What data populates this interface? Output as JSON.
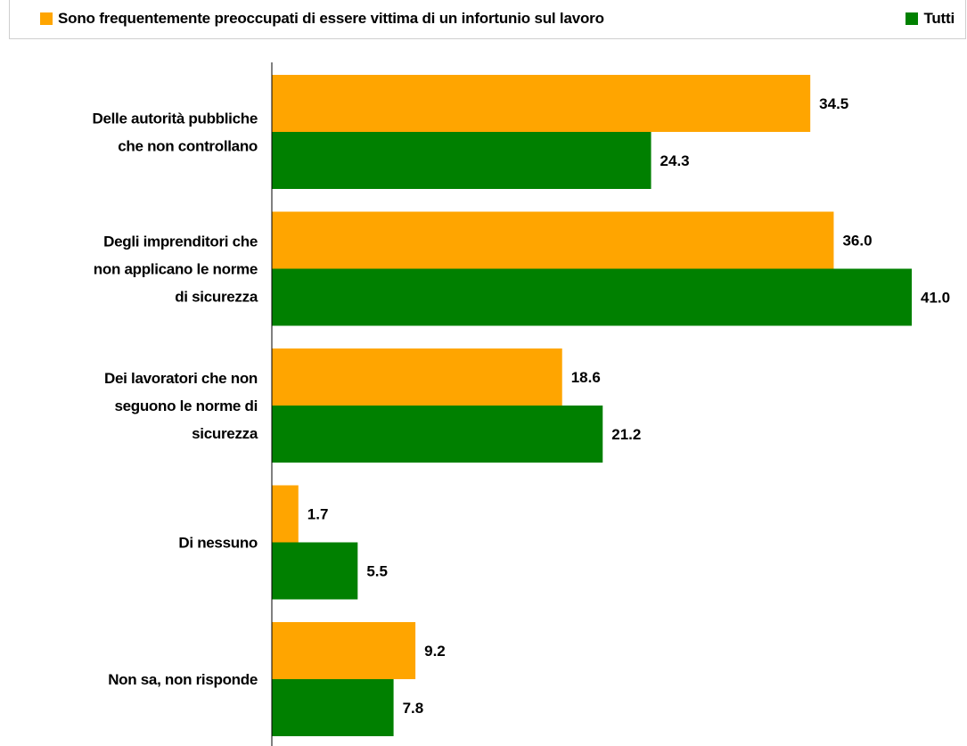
{
  "chart_data": {
    "type": "bar",
    "orientation": "horizontal",
    "categories": [
      [
        "Delle autorità pubbliche",
        "che non controllano"
      ],
      [
        "Degli imprenditori che",
        "non applicano le norme",
        "di sicurezza"
      ],
      [
        "Dei lavoratori che non",
        "seguono le norme di",
        "sicurezza"
      ],
      [
        "Di nessuno"
      ],
      [
        "Non sa, non risponde"
      ]
    ],
    "series": [
      {
        "name": "Sono frequentemente preoccupati di essere vittima di un infortunio sul lavoro",
        "color": "#FFA500",
        "values": [
          34.5,
          36.0,
          18.6,
          1.7,
          9.2
        ],
        "labels": [
          "34.5",
          "36.0",
          "18.6",
          "1.7",
          "9.2"
        ]
      },
      {
        "name": "Tutti",
        "color": "#008000",
        "values": [
          24.3,
          41.0,
          21.2,
          5.5,
          7.8
        ],
        "labels": [
          "24.3",
          "41.0",
          "21.2",
          "5.5",
          "7.8"
        ]
      }
    ],
    "xlim": [
      0,
      41
    ],
    "legend_position": "top",
    "grid": false
  }
}
